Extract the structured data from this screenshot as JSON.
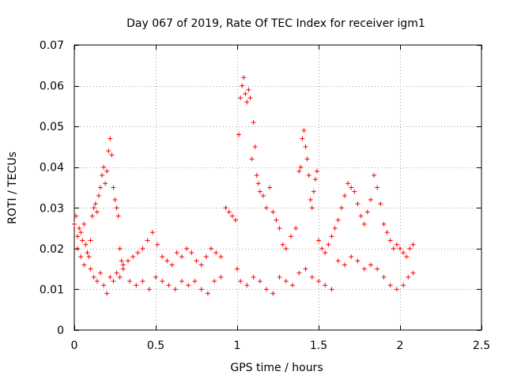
{
  "chart_data": {
    "type": "scatter",
    "title": "Day 067 of 2019, Rate Of TEC Index for receiver igm1",
    "xlabel": "GPS time / hours",
    "ylabel": "ROTI / TECUs",
    "xlim": [
      0,
      2.5
    ],
    "ylim": [
      0,
      0.07
    ],
    "xticks": [
      0,
      0.5,
      1,
      1.5,
      2,
      2.5
    ],
    "xtick_labels": [
      "0",
      "0.5",
      "1",
      "1.5",
      "2",
      "2.5"
    ],
    "yticks": [
      0,
      0.01,
      0.02,
      0.03,
      0.04,
      0.05,
      0.06,
      0.07
    ],
    "ytick_labels": [
      "0",
      "0.01",
      "0.02",
      "0.03",
      "0.04",
      "0.05",
      "0.06",
      "0.07"
    ],
    "grid": true,
    "marker": "+",
    "color": "#ff0000",
    "series": [
      {
        "name": "ROTI",
        "x": [
          0.0,
          0.01,
          0.02,
          0.03,
          0.04,
          0.05,
          0.06,
          0.07,
          0.02,
          0.04,
          0.06,
          0.08,
          0.09,
          0.1,
          0.11,
          0.12,
          0.13,
          0.14,
          0.15,
          0.16,
          0.17,
          0.18,
          0.19,
          0.2,
          0.21,
          0.22,
          0.23,
          0.24,
          0.25,
          0.26,
          0.27,
          0.28,
          0.29,
          0.3,
          0.1,
          0.12,
          0.14,
          0.16,
          0.18,
          0.2,
          0.22,
          0.24,
          0.26,
          0.28,
          0.3,
          0.33,
          0.36,
          0.39,
          0.42,
          0.45,
          0.48,
          0.51,
          0.54,
          0.57,
          0.6,
          0.63,
          0.66,
          0.69,
          0.72,
          0.75,
          0.78,
          0.81,
          0.84,
          0.87,
          0.9,
          0.34,
          0.38,
          0.42,
          0.46,
          0.5,
          0.54,
          0.58,
          0.62,
          0.66,
          0.7,
          0.74,
          0.78,
          0.82,
          0.86,
          0.9,
          0.93,
          0.95,
          0.97,
          0.99,
          1.0,
          1.01,
          1.02,
          1.03,
          1.04,
          1.05,
          1.06,
          1.07,
          1.08,
          1.09,
          1.1,
          1.11,
          1.12,
          1.13,
          1.14,
          1.16,
          1.18,
          1.2,
          1.22,
          1.24,
          1.26,
          1.28,
          1.3,
          1.33,
          1.36,
          1.38,
          1.39,
          1.4,
          1.41,
          1.42,
          1.43,
          1.44,
          1.45,
          1.46,
          1.47,
          1.48,
          1.49,
          1.5,
          1.52,
          1.54,
          1.56,
          1.58,
          1.6,
          1.62,
          1.64,
          1.66,
          1.68,
          1.7,
          1.72,
          1.74,
          1.76,
          1.78,
          1.8,
          1.82,
          1.84,
          1.86,
          1.88,
          1.9,
          1.92,
          1.94,
          1.96,
          1.98,
          2.0,
          2.02,
          2.04,
          2.06,
          2.08,
          1.02,
          1.06,
          1.1,
          1.14,
          1.18,
          1.22,
          1.26,
          1.3,
          1.34,
          1.38,
          1.42,
          1.46,
          1.5,
          1.54,
          1.58,
          1.62,
          1.66,
          1.7,
          1.74,
          1.78,
          1.82,
          1.86,
          1.9,
          1.94,
          1.98,
          2.02,
          2.05,
          2.08
        ],
        "y": [
          0.026,
          0.028,
          0.023,
          0.025,
          0.024,
          0.022,
          0.026,
          0.021,
          0.02,
          0.018,
          0.016,
          0.019,
          0.018,
          0.022,
          0.028,
          0.03,
          0.031,
          0.029,
          0.033,
          0.035,
          0.038,
          0.04,
          0.036,
          0.039,
          0.044,
          0.047,
          0.043,
          0.035,
          0.032,
          0.03,
          0.028,
          0.02,
          0.017,
          0.015,
          0.015,
          0.013,
          0.012,
          0.014,
          0.011,
          0.009,
          0.013,
          0.012,
          0.014,
          0.013,
          0.016,
          0.017,
          0.018,
          0.019,
          0.02,
          0.022,
          0.024,
          0.021,
          0.018,
          0.017,
          0.016,
          0.019,
          0.018,
          0.02,
          0.019,
          0.017,
          0.016,
          0.018,
          0.02,
          0.019,
          0.018,
          0.012,
          0.011,
          0.012,
          0.01,
          0.013,
          0.012,
          0.011,
          0.01,
          0.012,
          0.011,
          0.012,
          0.01,
          0.009,
          0.012,
          0.013,
          0.03,
          0.029,
          0.028,
          0.027,
          0.015,
          0.048,
          0.057,
          0.06,
          0.062,
          0.058,
          0.056,
          0.059,
          0.057,
          0.042,
          0.051,
          0.045,
          0.038,
          0.036,
          0.034,
          0.033,
          0.03,
          0.035,
          0.029,
          0.027,
          0.025,
          0.021,
          0.02,
          0.023,
          0.025,
          0.039,
          0.04,
          0.047,
          0.049,
          0.045,
          0.042,
          0.038,
          0.032,
          0.03,
          0.034,
          0.037,
          0.039,
          0.022,
          0.02,
          0.019,
          0.021,
          0.023,
          0.025,
          0.027,
          0.03,
          0.033,
          0.036,
          0.035,
          0.034,
          0.031,
          0.028,
          0.026,
          0.029,
          0.032,
          0.038,
          0.035,
          0.031,
          0.026,
          0.024,
          0.022,
          0.02,
          0.021,
          0.02,
          0.019,
          0.018,
          0.02,
          0.021,
          0.012,
          0.011,
          0.013,
          0.012,
          0.01,
          0.009,
          0.013,
          0.012,
          0.011,
          0.014,
          0.015,
          0.013,
          0.012,
          0.011,
          0.01,
          0.017,
          0.016,
          0.018,
          0.017,
          0.015,
          0.016,
          0.015,
          0.013,
          0.011,
          0.01,
          0.011,
          0.013,
          0.014
        ]
      }
    ]
  }
}
